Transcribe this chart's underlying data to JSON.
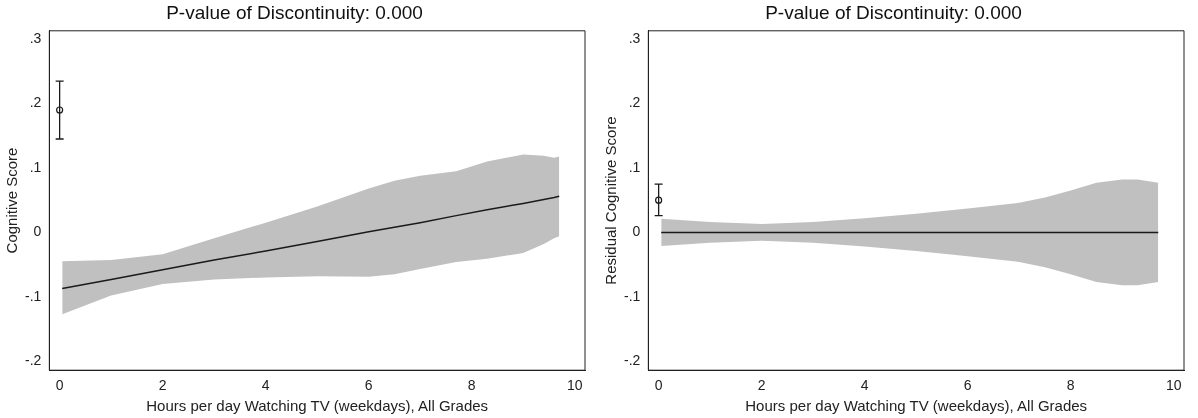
{
  "chart_data": [
    {
      "type": "line",
      "title": "P-value of Discontinuity: 0.000",
      "xlabel": "Hours per day Watching TV (weekdays), All Grades",
      "ylabel": "Cognitive Score",
      "xlim": [
        -0.2,
        10.2
      ],
      "ylim": [
        -0.214,
        0.313
      ],
      "xticks": [
        0,
        2,
        4,
        6,
        8,
        10
      ],
      "yticks": [
        {
          "value": -0.2,
          "label": "-.2"
        },
        {
          "value": -0.1,
          "label": "-.1"
        },
        0,
        {
          "value": 0.1,
          "label": ".1"
        },
        {
          "value": 0.2,
          "label": ".2"
        },
        {
          "value": 0.3,
          "label": ".3"
        }
      ],
      "grid": false,
      "legend": false,
      "line_style": "solid",
      "series": [
        {
          "type": "line",
          "color": "#1a1a1a",
          "x": [
            0.05,
            1,
            2,
            3,
            4,
            5,
            6,
            6.5,
            7,
            7.7,
            8.3,
            9,
            9.4,
            9.6,
            9.7
          ],
          "values": [
            -0.087,
            -0.073,
            -0.058,
            -0.043,
            -0.029,
            -0.014,
            0.001,
            0.008,
            0.015,
            0.026,
            0.035,
            0.045,
            0.051,
            0.054,
            0.056
          ],
          "lower": [
            -0.127,
            -0.098,
            -0.08,
            -0.073,
            -0.07,
            -0.068,
            -0.069,
            -0.065,
            -0.057,
            -0.046,
            -0.041,
            -0.032,
            -0.018,
            -0.009,
            -0.006
          ],
          "upper": [
            -0.045,
            -0.043,
            -0.034,
            -0.009,
            0.015,
            0.04,
            0.068,
            0.08,
            0.088,
            0.095,
            0.11,
            0.121,
            0.119,
            0.116,
            0.118
          ],
          "marker": "none"
        },
        {
          "type": "scatter",
          "color": "#1a1a1a",
          "x": [
            0
          ],
          "values": [
            0.19
          ],
          "errors": [
            [
              0.145,
              0.235
            ]
          ],
          "marker": "circle"
        }
      ]
    },
    {
      "type": "line",
      "title": "P-value of Discontinuity: 0.000",
      "xlabel": "Hours per day Watching TV (weekdays), All Grades",
      "ylabel": "Residual Cognitive Score",
      "xlim": [
        -0.2,
        10.2
      ],
      "ylim": [
        -0.214,
        0.313
      ],
      "xticks": [
        0,
        2,
        4,
        6,
        8,
        10
      ],
      "yticks": [
        {
          "value": -0.2,
          "label": "-.2"
        },
        {
          "value": -0.1,
          "label": "-.1"
        },
        0,
        {
          "value": 0.1,
          "label": ".1"
        },
        {
          "value": 0.2,
          "label": ".2"
        },
        {
          "value": 0.3,
          "label": ".3"
        }
      ],
      "grid": false,
      "legend": false,
      "line_style": "solid",
      "series": [
        {
          "type": "line",
          "color": "#1a1a1a",
          "x": [
            0.05,
            1,
            2,
            3,
            4,
            5,
            6,
            7,
            7.5,
            8,
            8.5,
            9,
            9.3,
            9.7
          ],
          "values": [
            0,
            0,
            0,
            0,
            0,
            0,
            0,
            0,
            0,
            0,
            0,
            0,
            0,
            0
          ],
          "lower": [
            -0.021,
            -0.016,
            -0.013,
            -0.016,
            -0.022,
            -0.029,
            -0.037,
            -0.046,
            -0.054,
            -0.065,
            -0.077,
            -0.082,
            -0.082,
            -0.077
          ],
          "upper": [
            0.021,
            0.016,
            0.013,
            0.016,
            0.022,
            0.029,
            0.037,
            0.046,
            0.054,
            0.065,
            0.077,
            0.082,
            0.082,
            0.077
          ],
          "marker": "none"
        },
        {
          "type": "scatter",
          "color": "#1a1a1a",
          "x": [
            0
          ],
          "values": [
            0.05
          ],
          "errors": [
            [
              0.026,
              0.075
            ]
          ],
          "marker": "circle"
        }
      ]
    }
  ]
}
